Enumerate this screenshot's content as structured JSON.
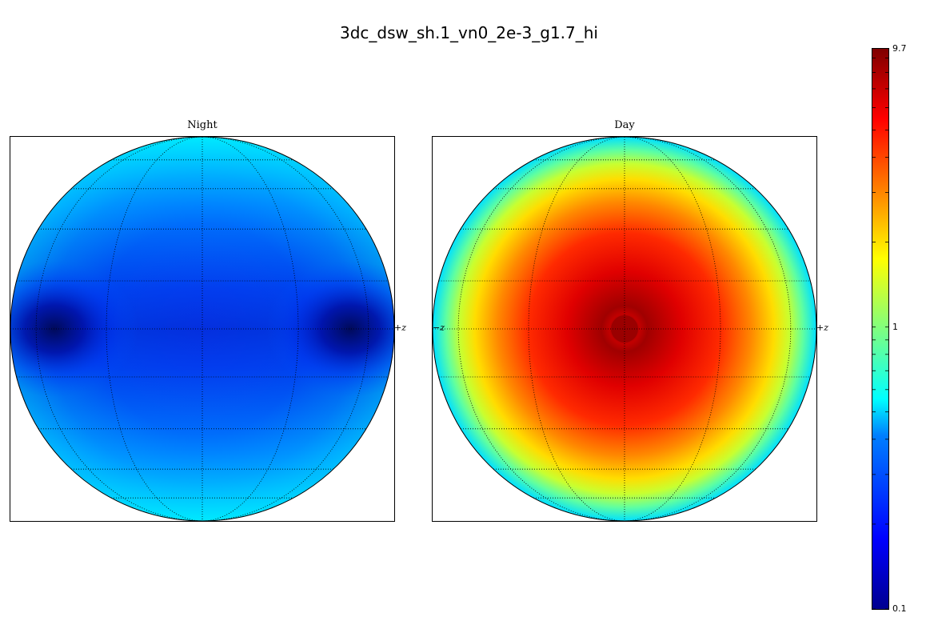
{
  "title": "3dc_dsw_sh.1_vn0_2e-3_g1.7_hi",
  "colorbar": {
    "scale": "log",
    "min_label": "0.1",
    "mid_label": "1",
    "max_label": "9.7",
    "min": 0.1,
    "max": 9.7,
    "colormap": "jet"
  },
  "chart_data": [
    {
      "type": "heatmap",
      "title": "Night",
      "projection": "orthographic disk",
      "axis_labels": {
        "right": "+z"
      },
      "grid": true,
      "description_values": {
        "center": 0.35,
        "rim_top_bottom": 0.55,
        "edge_spots": 0.1
      }
    },
    {
      "type": "heatmap",
      "title": "Day",
      "projection": "orthographic disk",
      "axis_labels": {
        "left": "−z",
        "right": "+z"
      },
      "grid": true,
      "description_values": {
        "center": 8.5,
        "mid_ring": 4.0,
        "rim": 0.6
      }
    }
  ]
}
